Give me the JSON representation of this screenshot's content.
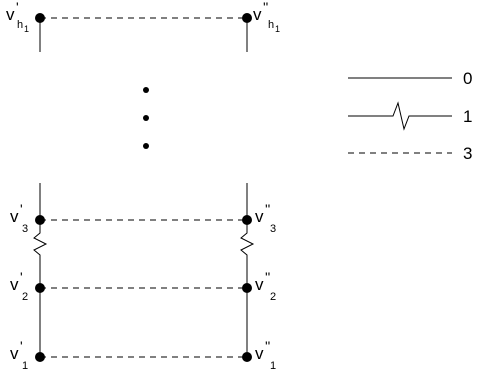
{
  "diagram": {
    "nodes": {
      "top_left": {
        "letter": "v",
        "prime": "'",
        "sub": "h",
        "subsub": "1"
      },
      "top_right": {
        "letter": "v",
        "prime": "''",
        "sub": "h",
        "subsub": "1"
      },
      "n3_left": {
        "letter": "v",
        "prime": "'",
        "sub": "3"
      },
      "n3_right": {
        "letter": "v",
        "prime": "''",
        "sub": "3"
      },
      "n2_left": {
        "letter": "v",
        "prime": "'",
        "sub": "2"
      },
      "n2_right": {
        "letter": "v",
        "prime": "''",
        "sub": "2"
      },
      "n1_left": {
        "letter": "v",
        "prime": "'",
        "sub": "1"
      },
      "n1_right": {
        "letter": "v",
        "prime": "''",
        "sub": "1"
      }
    },
    "legend": [
      {
        "style": "solid",
        "label": "0"
      },
      {
        "style": "zigzag",
        "label": "1"
      },
      {
        "style": "dashed",
        "label": "3"
      }
    ]
  }
}
